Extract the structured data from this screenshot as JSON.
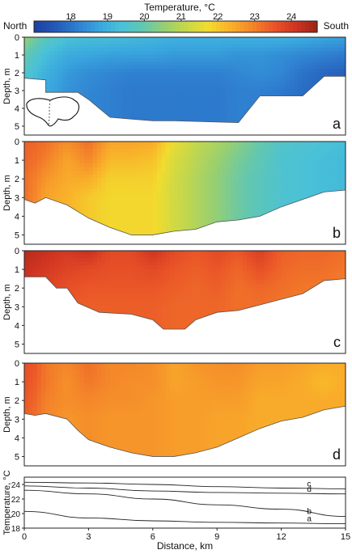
{
  "colorbar": {
    "title": "Temperature, °C",
    "left_label": "North",
    "right_label": "South",
    "range": [
      17,
      24.7
    ],
    "ticks": [
      18,
      19,
      20,
      21,
      22,
      23,
      24
    ],
    "colors": [
      "#1e3fa0",
      "#2459b8",
      "#2f7fd0",
      "#39a6de",
      "#49c1d8",
      "#62c7b0",
      "#97cf72",
      "#c6d84a",
      "#f2dc2e",
      "#f9b02a",
      "#f4862a",
      "#ea5528",
      "#cf3322",
      "#9a2416"
    ]
  },
  "chart_data": [
    {
      "type": "heatmap",
      "panel": "a",
      "xlabel": "",
      "ylabel": "Depth, m",
      "xlim": [
        0,
        15
      ],
      "ylim": [
        5.5,
        0
      ],
      "yticks": [
        0,
        1,
        2,
        3,
        4,
        5
      ],
      "bottom_depth": [
        [
          0,
          2.3
        ],
        [
          1,
          2.4
        ],
        [
          1,
          3.1
        ],
        [
          2.5,
          3.1
        ],
        [
          3,
          3.5
        ],
        [
          4,
          4.5
        ],
        [
          5,
          4.6
        ],
        [
          6,
          4.7
        ],
        [
          7,
          4.7
        ],
        [
          10,
          4.8
        ],
        [
          11,
          3.3
        ],
        [
          13,
          3.3
        ],
        [
          14,
          2.2
        ],
        [
          15,
          2.2
        ]
      ],
      "temperature": {
        "x": [
          0,
          0.5,
          1,
          2,
          3,
          4,
          5,
          6,
          7,
          8,
          9,
          10,
          11,
          12,
          13,
          14,
          15
        ],
        "depth": [
          0,
          1,
          2,
          3,
          4,
          5
        ],
        "values": [
          [
            20.6,
            20.2,
            19.8,
            19.4,
            19.3,
            19.3,
            19.2,
            19.1,
            19.0,
            19.0,
            19.0,
            19.0,
            19.0,
            19.0,
            18.9,
            18.8,
            18.7
          ],
          [
            20.0,
            19.6,
            19.3,
            18.9,
            18.8,
            18.7,
            18.7,
            18.7,
            18.6,
            18.6,
            18.6,
            18.5,
            18.5,
            18.4,
            18.3,
            18.2,
            18.1
          ],
          [
            19.6,
            19.3,
            19.0,
            18.6,
            18.4,
            18.3,
            18.2,
            18.2,
            18.2,
            18.2,
            18.2,
            18.3,
            18.4,
            18.3,
            18.0,
            17.8,
            17.7
          ],
          [
            19.5,
            19.2,
            18.9,
            18.5,
            18.3,
            18.2,
            18.1,
            18.1,
            18.1,
            18.1,
            18.1,
            18.2,
            18.2,
            18.1,
            17.9,
            17.8,
            17.7
          ],
          [
            19.5,
            19.2,
            18.9,
            18.5,
            18.3,
            18.2,
            18.1,
            18.1,
            18.1,
            18.1,
            18.1,
            18.2,
            18.2,
            18.1,
            17.9,
            17.8,
            17.7
          ],
          [
            19.5,
            19.2,
            18.9,
            18.5,
            18.3,
            18.2,
            18.1,
            18.1,
            18.1,
            18.1,
            18.1,
            18.2,
            18.2,
            18.1,
            17.9,
            17.8,
            17.7
          ]
        ]
      }
    },
    {
      "type": "heatmap",
      "panel": "b",
      "xlabel": "",
      "ylabel": "Depth, m",
      "xlim": [
        0,
        15
      ],
      "ylim": [
        5.5,
        0
      ],
      "yticks": [
        0,
        1,
        2,
        3,
        4,
        5
      ],
      "bottom_depth": [
        [
          0,
          3.1
        ],
        [
          0.5,
          3.3
        ],
        [
          1,
          3.0
        ],
        [
          2,
          3.4
        ],
        [
          3,
          4.1
        ],
        [
          4,
          4.6
        ],
        [
          5,
          5.0
        ],
        [
          6,
          5.0
        ],
        [
          7,
          4.8
        ],
        [
          8,
          4.7
        ],
        [
          9,
          4.3
        ],
        [
          10,
          4.2
        ],
        [
          11,
          4.0
        ],
        [
          12,
          3.5
        ],
        [
          13,
          3.1
        ],
        [
          14,
          2.7
        ],
        [
          15,
          2.6
        ]
      ],
      "temperature": {
        "x": [
          0,
          0.5,
          1,
          2,
          3,
          4,
          5,
          6,
          7,
          8,
          9,
          10,
          11,
          12,
          13,
          14,
          15
        ],
        "depth": [
          0,
          1,
          2,
          3,
          4,
          5
        ],
        "values": [
          [
            23.4,
            23.3,
            23.2,
            22.8,
            23.2,
            22.5,
            22.5,
            22.4,
            21.6,
            21.1,
            20.8,
            20.4,
            20.0,
            19.6,
            19.5,
            19.4,
            19.3
          ],
          [
            23.3,
            23.2,
            23.0,
            22.5,
            22.9,
            22.2,
            22.2,
            22.1,
            21.4,
            21.0,
            20.6,
            20.2,
            19.9,
            19.5,
            19.4,
            19.3,
            19.2
          ],
          [
            23.2,
            23.0,
            22.7,
            22.4,
            22.4,
            21.9,
            21.9,
            21.9,
            21.3,
            20.9,
            20.5,
            20.1,
            19.8,
            19.5,
            19.4,
            19.3,
            19.2
          ],
          [
            23.2,
            22.9,
            22.5,
            22.3,
            22.0,
            21.8,
            21.8,
            21.8,
            21.3,
            20.9,
            20.5,
            20.1,
            19.8,
            19.5,
            19.4,
            19.3,
            19.2
          ],
          [
            23.2,
            22.9,
            22.5,
            22.3,
            22.0,
            21.8,
            21.8,
            21.8,
            21.3,
            20.9,
            20.5,
            20.1,
            19.8,
            19.5,
            19.4,
            19.3,
            19.2
          ],
          [
            23.2,
            22.9,
            22.5,
            22.3,
            22.0,
            21.8,
            21.8,
            21.8,
            21.3,
            20.9,
            20.5,
            20.1,
            19.8,
            19.5,
            19.4,
            19.3,
            19.2
          ]
        ]
      }
    },
    {
      "type": "heatmap",
      "panel": "c",
      "xlabel": "",
      "ylabel": "Depth, m",
      "xlim": [
        0,
        15
      ],
      "ylim": [
        5.5,
        0
      ],
      "yticks": [
        0,
        1,
        2,
        3,
        4,
        5
      ],
      "bottom_depth": [
        [
          0,
          1.4
        ],
        [
          1,
          1.4
        ],
        [
          1.5,
          2.0
        ],
        [
          2,
          2.0
        ],
        [
          2.5,
          2.8
        ],
        [
          3.5,
          3.3
        ],
        [
          5,
          3.4
        ],
        [
          6,
          3.7
        ],
        [
          6.5,
          4.2
        ],
        [
          7.5,
          4.2
        ],
        [
          8,
          3.7
        ],
        [
          9,
          3.3
        ],
        [
          10,
          3.2
        ],
        [
          11,
          2.9
        ],
        [
          12,
          2.6
        ],
        [
          13,
          2.3
        ],
        [
          14,
          1.6
        ],
        [
          15,
          1.5
        ]
      ],
      "temperature": {
        "x": [
          0,
          0.5,
          1,
          2,
          3,
          4,
          5,
          6,
          7,
          8,
          9,
          10,
          11,
          12,
          13,
          14,
          15
        ],
        "depth": [
          0,
          1,
          2,
          3,
          4,
          5
        ],
        "values": [
          [
            24.4,
            24.3,
            24.2,
            24.0,
            24.2,
            23.7,
            23.7,
            24.1,
            23.7,
            23.5,
            23.7,
            23.5,
            23.9,
            23.4,
            23.3,
            23.3,
            23.2
          ],
          [
            24.2,
            24.1,
            24.0,
            23.8,
            23.7,
            23.6,
            23.6,
            23.7,
            23.5,
            23.4,
            23.5,
            23.3,
            23.6,
            23.3,
            23.2,
            23.2,
            23.1
          ],
          [
            24.0,
            23.9,
            23.8,
            23.6,
            23.5,
            23.5,
            23.5,
            23.5,
            23.4,
            23.3,
            23.4,
            23.2,
            23.3,
            23.2,
            23.1,
            23.1,
            23.0
          ],
          [
            23.9,
            23.8,
            23.7,
            23.5,
            23.4,
            23.4,
            23.4,
            23.4,
            23.3,
            23.3,
            23.3,
            23.2,
            23.2,
            23.1,
            23.0,
            23.0,
            23.0
          ],
          [
            23.9,
            23.8,
            23.7,
            23.5,
            23.4,
            23.4,
            23.4,
            23.4,
            23.3,
            23.3,
            23.3,
            23.2,
            23.2,
            23.1,
            23.0,
            23.0,
            23.0
          ],
          [
            23.9,
            23.8,
            23.7,
            23.5,
            23.4,
            23.4,
            23.4,
            23.4,
            23.3,
            23.3,
            23.3,
            23.2,
            23.2,
            23.1,
            23.0,
            23.0,
            23.0
          ]
        ]
      }
    },
    {
      "type": "heatmap",
      "panel": "d",
      "xlabel": "",
      "ylabel": "Depth, m",
      "xlim": [
        0,
        15
      ],
      "ylim": [
        5.5,
        0
      ],
      "yticks": [
        0,
        1,
        2,
        3,
        4,
        5
      ],
      "bottom_depth": [
        [
          0,
          2.7
        ],
        [
          0.5,
          2.8
        ],
        [
          1,
          2.7
        ],
        [
          2,
          3.0
        ],
        [
          2.5,
          3.6
        ],
        [
          3,
          4.1
        ],
        [
          4,
          4.5
        ],
        [
          5,
          4.8
        ],
        [
          6,
          5.0
        ],
        [
          7,
          5.0
        ],
        [
          8,
          4.8
        ],
        [
          9,
          4.5
        ],
        [
          10,
          4.0
        ],
        [
          11,
          3.5
        ],
        [
          12,
          3.1
        ],
        [
          13,
          2.9
        ],
        [
          14,
          2.5
        ],
        [
          15,
          2.3
        ]
      ],
      "temperature": {
        "x": [
          0,
          0.5,
          1,
          2,
          3,
          4,
          5,
          6,
          7,
          8,
          9,
          10,
          11,
          12,
          13,
          14,
          15
        ],
        "depth": [
          0,
          1,
          2,
          3,
          4,
          5
        ],
        "values": [
          [
            23.6,
            23.5,
            23.1,
            22.9,
            23.2,
            22.9,
            22.9,
            22.8,
            22.5,
            22.7,
            22.8,
            22.8,
            22.6,
            22.6,
            22.5,
            22.4,
            22.4
          ],
          [
            23.6,
            23.4,
            23.1,
            22.8,
            23.1,
            22.9,
            22.8,
            22.8,
            22.5,
            22.6,
            22.7,
            22.7,
            22.5,
            22.5,
            22.4,
            22.2,
            22.4
          ],
          [
            23.5,
            23.3,
            23.0,
            22.8,
            22.9,
            22.8,
            22.8,
            22.7,
            22.6,
            22.6,
            22.6,
            22.6,
            22.4,
            22.4,
            22.4,
            22.4,
            22.4
          ],
          [
            23.4,
            23.2,
            22.9,
            22.7,
            22.8,
            22.7,
            22.7,
            22.7,
            22.6,
            22.6,
            22.5,
            22.5,
            22.4,
            22.4,
            22.4,
            22.4,
            22.4
          ],
          [
            23.4,
            23.2,
            22.9,
            22.7,
            22.8,
            22.7,
            22.7,
            22.7,
            22.6,
            22.6,
            22.5,
            22.5,
            22.4,
            22.4,
            22.4,
            22.4,
            22.4
          ],
          [
            23.4,
            23.2,
            22.9,
            22.7,
            22.8,
            22.7,
            22.7,
            22.7,
            22.6,
            22.6,
            22.5,
            22.5,
            22.4,
            22.4,
            22.4,
            22.4,
            22.4
          ]
        ]
      }
    },
    {
      "type": "line",
      "panel": "e",
      "xlabel": "Distance, km",
      "ylabel": "Temperature, °C",
      "xlim": [
        0,
        15
      ],
      "ylim": [
        18,
        25
      ],
      "xticks": [
        0,
        3,
        6,
        9,
        12,
        15
      ],
      "yticks": [
        18,
        20,
        22,
        24
      ],
      "series": [
        {
          "name": "c",
          "x": [
            0,
            3,
            6,
            9,
            12,
            15
          ],
          "values": [
            24.3,
            24.2,
            24.0,
            23.7,
            23.5,
            23.4
          ]
        },
        {
          "name": "d",
          "x": [
            0,
            3,
            6,
            9,
            12,
            15
          ],
          "values": [
            23.8,
            23.5,
            23.1,
            22.9,
            22.8,
            22.7
          ]
        },
        {
          "name": "b",
          "x": [
            0,
            3,
            6,
            9,
            12,
            15
          ],
          "values": [
            23.2,
            22.7,
            22.0,
            21.2,
            20.6,
            19.6
          ]
        },
        {
          "name": "a",
          "x": [
            0,
            3,
            6,
            9,
            12,
            15
          ],
          "values": [
            20.3,
            19.4,
            19.0,
            18.8,
            18.7,
            18.6
          ]
        }
      ]
    }
  ]
}
